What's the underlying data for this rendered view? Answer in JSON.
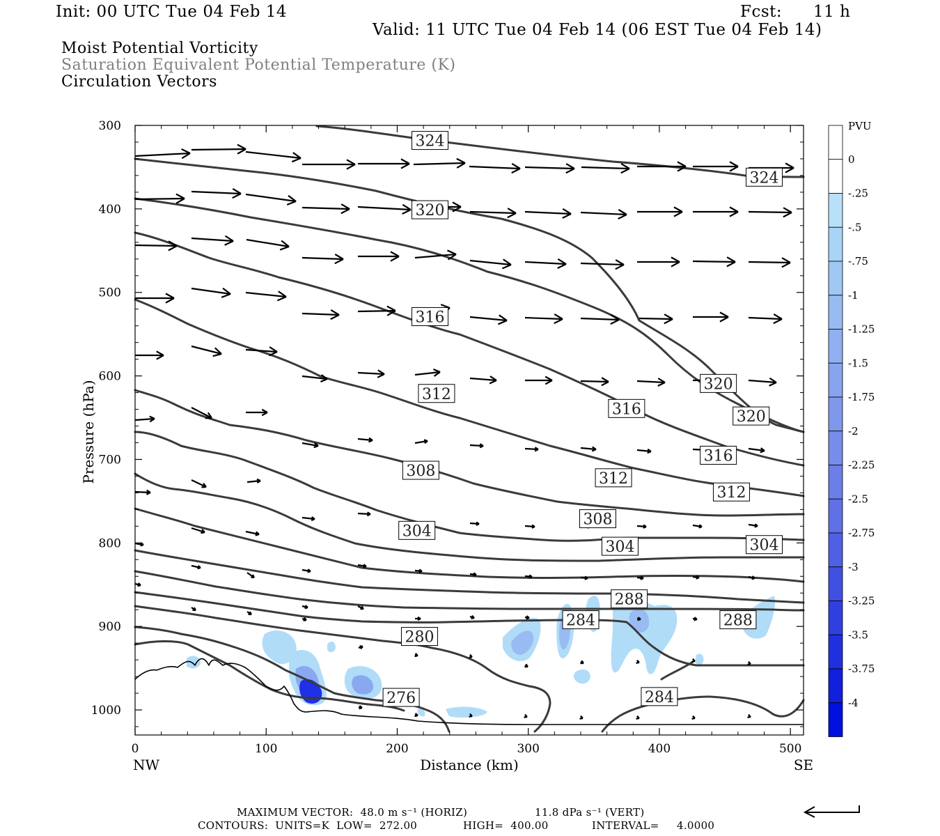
{
  "header": {
    "init": "Init: 00 UTC Tue 04 Feb 14",
    "fcst_label": "Fcst:",
    "fcst_value": "11 h",
    "valid": "Valid: 11 UTC Tue 04 Feb 14 (06 EST Tue 04 Feb 14)"
  },
  "titles": {
    "line1": "Moist Potential Vorticity",
    "line2": "Saturation Equivalent Potential Temperature (K)",
    "line3": "Circulation Vectors"
  },
  "footer": {
    "max_vector": "MAXIMUM VECTOR:  48.0 m s⁻¹ (HORIZ)",
    "vert": "11.8 dPa s⁻¹ (VERT)",
    "contours": "CONTOURS:  UNITS=K  LOW=  272.00",
    "high": "HIGH=  400.00",
    "interval": "INTERVAL=     4.0000"
  },
  "colors": {
    "contour": "#3a3a3a",
    "axis": "#000000",
    "shade_light": "#b0dcf8",
    "shade_mid": "#8aa8f0",
    "shade_dark": "#1010e0"
  },
  "chart_data": {
    "type": "cross-section",
    "xlabel": "Distance (km)",
    "ylabel": "Pressure (hPa)",
    "xlim": [
      0,
      510
    ],
    "ylim": [
      1030,
      300
    ],
    "x_ticks": [
      0,
      100,
      200,
      300,
      400,
      500
    ],
    "y_ticks": [
      300,
      400,
      500,
      600,
      700,
      800,
      900,
      1000
    ],
    "x_end_labels": [
      "NW",
      "SE"
    ],
    "colorbar": {
      "unit": "PVU",
      "levels": [
        "0",
        "-.25",
        "-.5",
        "-.75",
        "-1",
        "-1.25",
        "-1.5",
        "-1.75",
        "-2",
        "-2.25",
        "-2.5",
        "-2.75",
        "-3",
        "-3.25",
        "-3.5",
        "-3.75",
        "-4"
      ],
      "colors": [
        "#ffffff",
        "#ffffff",
        "#b8e0f8",
        "#a8d4f6",
        "#a0c8f4",
        "#98bcf2",
        "#90b0f0",
        "#88a4ee",
        "#8098ec",
        "#788cea",
        "#6c7ee8",
        "#6070e6",
        "#5060e4",
        "#4050e2",
        "#3040e0",
        "#2030de",
        "#1020dc",
        "#0010e0"
      ]
    },
    "contour_labels": [
      {
        "text": "324",
        "x": 225,
        "p": 318
      },
      {
        "text": "324",
        "x": 480,
        "p": 362
      },
      {
        "text": "320",
        "x": 225,
        "p": 401
      },
      {
        "text": "316",
        "x": 225,
        "p": 529
      },
      {
        "text": "320",
        "x": 445,
        "p": 609
      },
      {
        "text": "312",
        "x": 230,
        "p": 621
      },
      {
        "text": "316",
        "x": 375,
        "p": 639
      },
      {
        "text": "320",
        "x": 470,
        "p": 648
      },
      {
        "text": "308",
        "x": 218,
        "p": 713
      },
      {
        "text": "316",
        "x": 445,
        "p": 695
      },
      {
        "text": "312",
        "x": 365,
        "p": 722
      },
      {
        "text": "312",
        "x": 455,
        "p": 739
      },
      {
        "text": "308",
        "x": 353,
        "p": 771
      },
      {
        "text": "304",
        "x": 215,
        "p": 785
      },
      {
        "text": "304",
        "x": 370,
        "p": 804
      },
      {
        "text": "304",
        "x": 480,
        "p": 802
      },
      {
        "text": "288",
        "x": 377,
        "p": 867
      },
      {
        "text": "284",
        "x": 340,
        "p": 892
      },
      {
        "text": "288",
        "x": 460,
        "p": 892
      },
      {
        "text": "280",
        "x": 217,
        "p": 912
      },
      {
        "text": "276",
        "x": 203,
        "p": 985
      },
      {
        "text": "284",
        "x": 400,
        "p": 984
      }
    ]
  }
}
